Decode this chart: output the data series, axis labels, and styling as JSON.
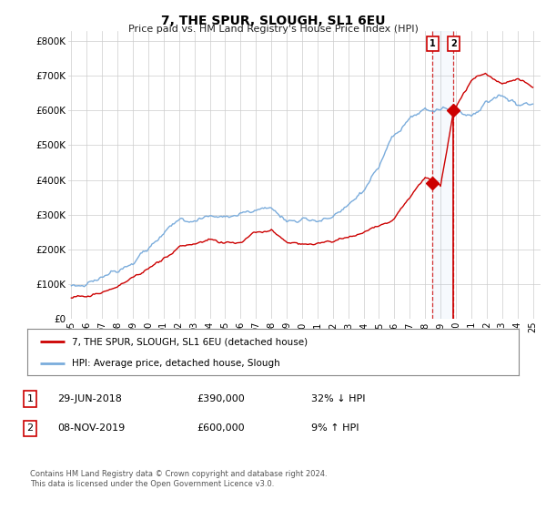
{
  "title": "7, THE SPUR, SLOUGH, SL1 6EU",
  "subtitle": "Price paid vs. HM Land Registry's House Price Index (HPI)",
  "ylabel_ticks": [
    "£0",
    "£100K",
    "£200K",
    "£300K",
    "£400K",
    "£500K",
    "£600K",
    "£700K",
    "£800K"
  ],
  "ytick_values": [
    0,
    100000,
    200000,
    300000,
    400000,
    500000,
    600000,
    700000,
    800000
  ],
  "ylim": [
    0,
    830000
  ],
  "xlim_start": 1994.8,
  "xlim_end": 2025.5,
  "xticks": [
    1995,
    1996,
    1997,
    1998,
    1999,
    2000,
    2001,
    2002,
    2003,
    2004,
    2005,
    2006,
    2007,
    2008,
    2009,
    2010,
    2011,
    2012,
    2013,
    2014,
    2015,
    2016,
    2017,
    2018,
    2019,
    2020,
    2021,
    2022,
    2023,
    2024,
    2025
  ],
  "hpi_color": "#7aacdc",
  "price_color": "#cc0000",
  "sale1_date": 2018.49,
  "sale1_price": 390000,
  "sale2_date": 2019.85,
  "sale2_price": 600000,
  "vline_color": "#cc0000",
  "legend_line1": "7, THE SPUR, SLOUGH, SL1 6EU (detached house)",
  "legend_line2": "HPI: Average price, detached house, Slough",
  "table_row1": [
    "1",
    "29-JUN-2018",
    "£390,000",
    "32% ↓ HPI"
  ],
  "table_row2": [
    "2",
    "08-NOV-2019",
    "£600,000",
    "9% ↑ HPI"
  ],
  "footnote": "Contains HM Land Registry data © Crown copyright and database right 2024.\nThis data is licensed under the Open Government Licence v3.0.",
  "background_color": "#ffffff"
}
